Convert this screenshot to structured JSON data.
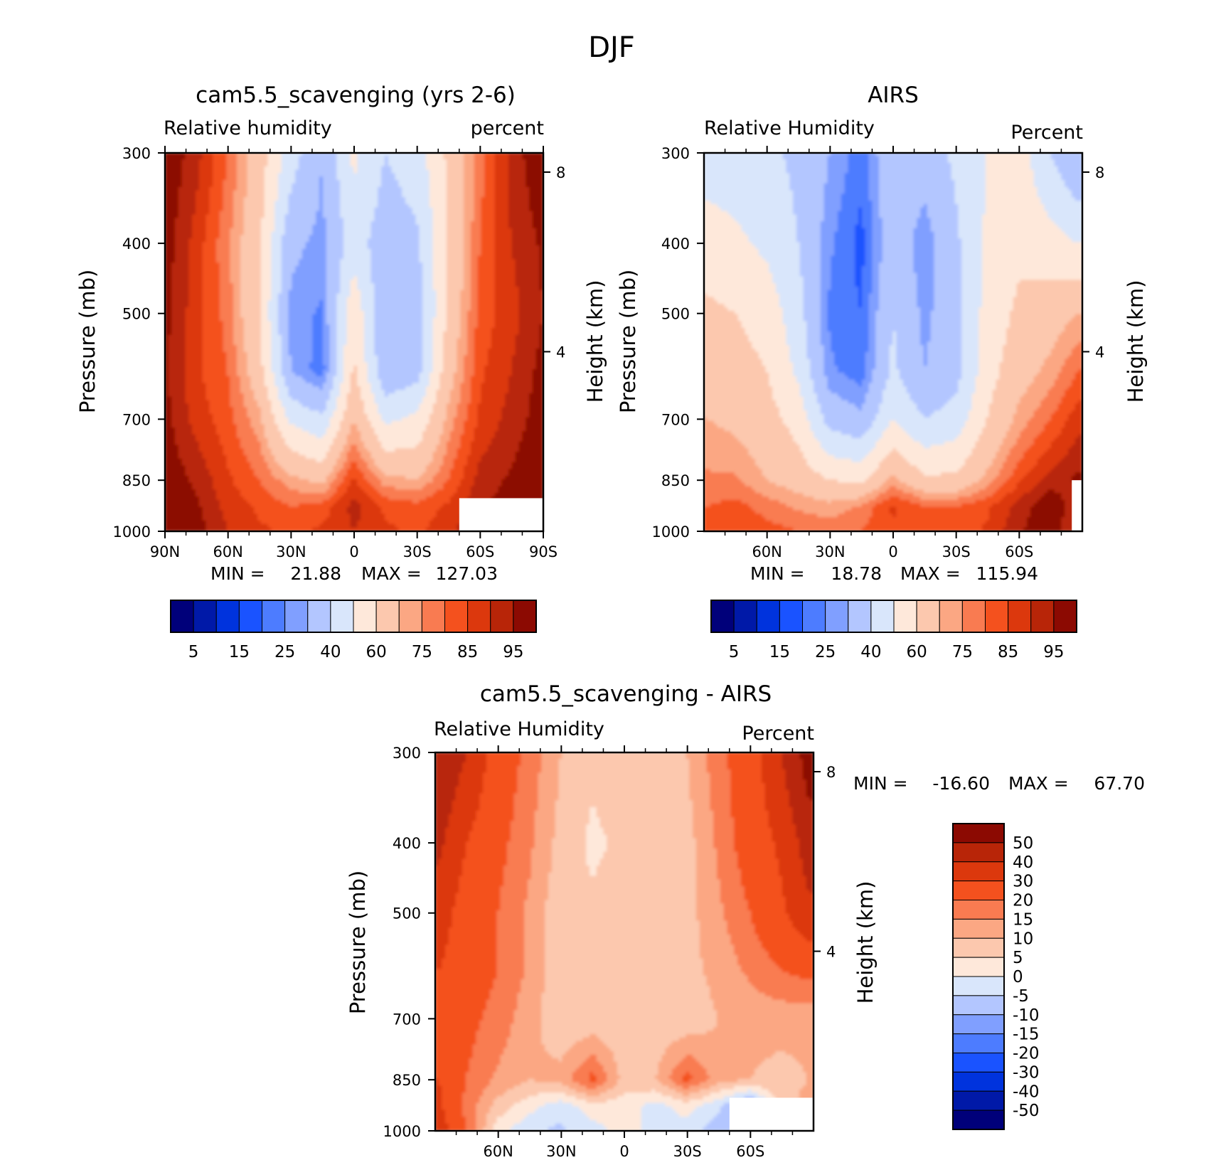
{
  "page_title": "DJF",
  "colors": {
    "abs_levels": [
      "#00007a",
      "#0019a8",
      "#0033dd",
      "#1a53ff",
      "#4d7cff",
      "#809fff",
      "#b3c6ff",
      "#d9e6fb",
      "#fee8da",
      "#fcc8ae",
      "#fba783",
      "#f97b51",
      "#f4511e",
      "#dc380d",
      "#b82508",
      "#8c0a02"
    ],
    "diff_levels": [
      "#00007a",
      "#0019a8",
      "#0033dd",
      "#1a53ff",
      "#4d7cff",
      "#809fff",
      "#b3c6ff",
      "#d9e6fb",
      "#fee8da",
      "#fcc8ae",
      "#fba783",
      "#f97b51",
      "#f4511e",
      "#dc380d",
      "#b82508",
      "#8c0a02"
    ],
    "missing": "#ffffff"
  },
  "chart_data": [
    {
      "type": "heatmap",
      "title": "cam5.5_scavenging (yrs 2-6)",
      "left_label": "Relative humidity",
      "right_label": "percent",
      "ylabel": "Pressure (mb)",
      "ylabel_right": "Height (km)",
      "x_ticks": [
        "90N",
        "60N",
        "30N",
        "0",
        "30S",
        "60S",
        "90S"
      ],
      "y_ticks": [
        300,
        400,
        500,
        700,
        850,
        1000
      ],
      "y_right_ticks": [
        8,
        4
      ],
      "stats": {
        "min_label": "MIN =",
        "min": "21.88",
        "max_label": "MAX =",
        "max": "127.03"
      },
      "colorbar_labels": [
        "5",
        "15",
        "25",
        "40",
        "60",
        "75",
        "85",
        "95"
      ],
      "lat": [
        90,
        75,
        60,
        45,
        30,
        15,
        0,
        -15,
        -30,
        -45,
        -60,
        -75,
        -90
      ],
      "pressure": [
        300,
        400,
        500,
        600,
        700,
        850,
        925,
        1000
      ],
      "values": [
        [
          100,
          92,
          80,
          65,
          45,
          30,
          52,
          40,
          45,
          62,
          78,
          92,
          100
        ],
        [
          98,
          88,
          76,
          62,
          32,
          28,
          45,
          34,
          38,
          60,
          80,
          90,
          96
        ],
        [
          97,
          87,
          78,
          60,
          28,
          24,
          58,
          30,
          34,
          62,
          82,
          88,
          95
        ],
        [
          96,
          86,
          80,
          64,
          30,
          22,
          62,
          32,
          36,
          66,
          84,
          90,
          97
        ],
        [
          97,
          88,
          82,
          72,
          48,
          42,
          70,
          48,
          52,
          72,
          86,
          92,
          98
        ],
        [
          99,
          94,
          86,
          80,
          72,
          68,
          86,
          72,
          70,
          80,
          92,
          96,
          100
        ],
        [
          100,
          96,
          88,
          84,
          80,
          82,
          92,
          84,
          82,
          86,
          94,
          98,
          100
        ],
        [
          100,
          98,
          90,
          86,
          84,
          86,
          90,
          86,
          84,
          88,
          96,
          100,
          100
        ]
      ],
      "missing_region": {
        "lat_min": -90,
        "lat_max": -50,
        "p_min": 900,
        "p_max": 1000
      }
    },
    {
      "type": "heatmap",
      "title": "AIRS",
      "left_label": "Relative Humidity",
      "right_label": "Percent",
      "ylabel": "Pressure (mb)",
      "ylabel_right": "Height (km)",
      "x_ticks": [
        "60N",
        "30N",
        "0",
        "30S",
        "60S"
      ],
      "y_ticks": [
        300,
        400,
        500,
        700,
        850,
        1000
      ],
      "y_right_ticks": [
        8,
        4
      ],
      "stats": {
        "min_label": "MIN =",
        "min": "18.78",
        "max_label": "MAX =",
        "max": "115.94"
      },
      "colorbar_labels": [
        "5",
        "15",
        "25",
        "40",
        "60",
        "75",
        "85",
        "95"
      ],
      "lat": [
        88,
        75,
        60,
        45,
        30,
        15,
        0,
        -15,
        -30,
        -45,
        -60,
        -75,
        -88
      ],
      "pressure": [
        300,
        400,
        500,
        600,
        700,
        850,
        925,
        1000
      ],
      "values": [
        [
          45,
          45,
          42,
          38,
          30,
          22,
          38,
          34,
          42,
          50,
          55,
          40,
          30
        ],
        [
          55,
          52,
          48,
          40,
          26,
          18,
          36,
          26,
          38,
          52,
          58,
          54,
          50
        ],
        [
          62,
          60,
          56,
          44,
          24,
          20,
          40,
          28,
          36,
          54,
          62,
          66,
          70
        ],
        [
          66,
          64,
          60,
          48,
          26,
          22,
          42,
          30,
          36,
          56,
          66,
          72,
          80
        ],
        [
          70,
          68,
          64,
          56,
          36,
          32,
          50,
          40,
          44,
          60,
          72,
          80,
          88
        ],
        [
          76,
          76,
          70,
          66,
          60,
          58,
          72,
          62,
          62,
          72,
          84,
          92,
          96
        ],
        [
          80,
          82,
          78,
          74,
          72,
          76,
          86,
          80,
          80,
          84,
          92,
          100,
          90
        ],
        [
          80,
          84,
          82,
          80,
          78,
          80,
          84,
          82,
          82,
          86,
          94,
          100,
          88
        ]
      ],
      "missing_region": {
        "lat_min": -90,
        "lat_max": -85,
        "p_min": 850,
        "p_max": 1000
      }
    },
    {
      "type": "heatmap",
      "title": "cam5.5_scavenging - AIRS",
      "left_label": "Relative Humidity",
      "right_label": "Percent",
      "ylabel": "Pressure (mb)",
      "ylabel_right": "Height (km)",
      "x_ticks": [
        "60N",
        "30N",
        "0",
        "30S",
        "60S"
      ],
      "y_ticks": [
        300,
        400,
        500,
        700,
        850,
        1000
      ],
      "y_right_ticks": [
        8,
        4
      ],
      "stats": {
        "min_label": "MIN =",
        "min": "-16.60",
        "max_label": "MAX =",
        "max": "67.70"
      },
      "colorbar_labels": [
        "50",
        "40",
        "30",
        "20",
        "15",
        "10",
        "5",
        "0",
        "-5",
        "-10",
        "-15",
        "-20",
        "-30",
        "-40",
        "-50"
      ],
      "lat": [
        88,
        75,
        60,
        45,
        30,
        15,
        0,
        -15,
        -30,
        -45,
        -60,
        -75,
        -88
      ],
      "pressure": [
        300,
        400,
        500,
        600,
        700,
        850,
        925,
        1000
      ],
      "values": [
        [
          50,
          40,
          25,
          18,
          10,
          6,
          9,
          8,
          10,
          18,
          25,
          40,
          55
        ],
        [
          42,
          30,
          22,
          16,
          8,
          4,
          6,
          6,
          8,
          16,
          24,
          32,
          45
        ],
        [
          35,
          25,
          20,
          14,
          6,
          6,
          8,
          8,
          8,
          14,
          20,
          28,
          38
        ],
        [
          30,
          24,
          20,
          14,
          6,
          6,
          8,
          6,
          8,
          12,
          16,
          20,
          22
        ],
        [
          28,
          22,
          18,
          12,
          6,
          6,
          6,
          6,
          6,
          10,
          12,
          12,
          12
        ],
        [
          30,
          20,
          14,
          10,
          12,
          22,
          8,
          10,
          22,
          12,
          10,
          8,
          10
        ],
        [
          32,
          18,
          8,
          2,
          -3,
          3,
          2,
          -2,
          2,
          -4,
          -14,
          8,
          12
        ],
        [
          35,
          20,
          2,
          -4,
          -6,
          -2,
          2,
          -2,
          -2,
          -8,
          -10,
          4,
          8
        ]
      ],
      "missing_region": {
        "lat_min": -90,
        "lat_max": -50,
        "p_min": 900,
        "p_max": 1000
      }
    }
  ]
}
